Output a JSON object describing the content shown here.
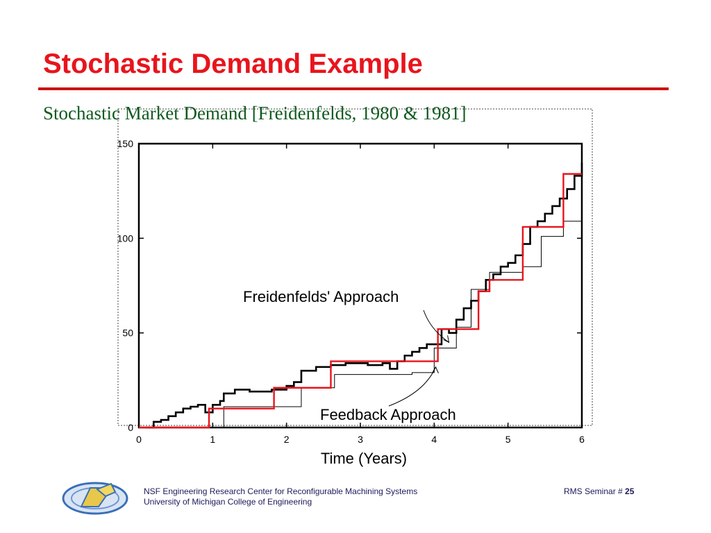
{
  "slide": {
    "title": "Stochastic Demand Example",
    "subtitle": "Stochastic Market Demand [Freidenfelds, 1980 & 1981]",
    "title_color": "#e8141c",
    "subtitle_color": "#0f5a1e"
  },
  "footer": {
    "line1": "NSF Engineering Research Center for Reconfigurable Machining Systems",
    "line2": "University of Michigan College of Engineering",
    "seminar_label": "RMS Seminar # ",
    "page_number": "25",
    "logo_icon": "rms-logo-icon"
  },
  "chart_data": {
    "type": "line",
    "xlabel": "Time (Years)",
    "ylabel": "",
    "xlim": [
      0,
      6
    ],
    "ylim": [
      0,
      150
    ],
    "xticks": [
      0,
      1,
      2,
      3,
      4,
      5,
      6
    ],
    "yticks": [
      0,
      50,
      100,
      150
    ],
    "grid": false,
    "annotations": [
      {
        "text": "Freidenfelds' Approach",
        "points_to": [
          4.2,
          45
        ]
      },
      {
        "text": "Feedback Approach",
        "points_to": [
          4.0,
          32
        ]
      }
    ],
    "series": [
      {
        "color": "#000000",
        "style": "step-thick",
        "points": [
          [
            0.1,
            0
          ],
          [
            0.2,
            3
          ],
          [
            0.3,
            4
          ],
          [
            0.4,
            6
          ],
          [
            0.5,
            8
          ],
          [
            0.6,
            10
          ],
          [
            0.7,
            11
          ],
          [
            0.8,
            12
          ],
          [
            0.9,
            8
          ],
          [
            1.0,
            12
          ],
          [
            1.1,
            14
          ],
          [
            1.15,
            18
          ],
          [
            1.3,
            20
          ],
          [
            1.5,
            19
          ],
          [
            1.8,
            20
          ],
          [
            2.0,
            22
          ],
          [
            2.1,
            24
          ],
          [
            2.2,
            30
          ],
          [
            2.4,
            32
          ],
          [
            2.6,
            33
          ],
          [
            2.8,
            34
          ],
          [
            3.0,
            34
          ],
          [
            3.1,
            33
          ],
          [
            3.3,
            34
          ],
          [
            3.4,
            31
          ],
          [
            3.5,
            35
          ],
          [
            3.6,
            38
          ],
          [
            3.7,
            40
          ],
          [
            3.8,
            42
          ],
          [
            3.9,
            44
          ],
          [
            4.1,
            52
          ],
          [
            4.2,
            50
          ],
          [
            4.3,
            57
          ],
          [
            4.4,
            63
          ],
          [
            4.5,
            67
          ],
          [
            4.6,
            72
          ],
          [
            4.7,
            78
          ],
          [
            4.8,
            81
          ],
          [
            4.9,
            85
          ],
          [
            5.0,
            87
          ],
          [
            5.1,
            91
          ],
          [
            5.2,
            97
          ],
          [
            5.3,
            106
          ],
          [
            5.4,
            109
          ],
          [
            5.5,
            113
          ],
          [
            5.6,
            117
          ],
          [
            5.7,
            121
          ],
          [
            5.8,
            126
          ],
          [
            5.9,
            133
          ],
          [
            6.0,
            140
          ]
        ]
      },
      {
        "color": "#000000",
        "style": "step-thin",
        "points": [
          [
            0,
            0
          ],
          [
            1.15,
            11
          ],
          [
            2.2,
            21
          ],
          [
            2.65,
            28
          ],
          [
            3.7,
            29
          ],
          [
            4.0,
            42
          ],
          [
            4.3,
            53
          ],
          [
            4.5,
            73
          ],
          [
            4.75,
            82
          ],
          [
            5.2,
            85
          ],
          [
            5.45,
            101
          ],
          [
            5.75,
            109
          ],
          [
            6.0,
            134
          ]
        ]
      },
      {
        "color": "#e8141c",
        "style": "step",
        "points": [
          [
            0,
            0
          ],
          [
            0.95,
            10
          ],
          [
            1.83,
            21
          ],
          [
            2.6,
            35
          ],
          [
            3.3,
            35
          ],
          [
            3.9,
            35
          ],
          [
            4.05,
            52
          ],
          [
            4.6,
            72
          ],
          [
            4.75,
            78
          ],
          [
            5.2,
            106
          ],
          [
            5.75,
            134
          ],
          [
            6.0,
            134
          ]
        ]
      }
    ]
  }
}
